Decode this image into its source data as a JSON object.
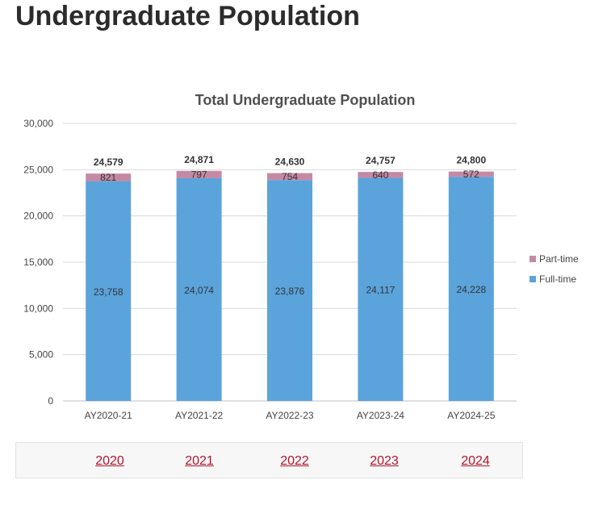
{
  "page": {
    "title": "Undergraduate Population"
  },
  "chart_data": {
    "type": "bar",
    "stacked": true,
    "title": "Total Undergraduate Population",
    "xlabel": "",
    "ylabel": "",
    "categories": [
      "AY2020-21",
      "AY2021-22",
      "AY2022-23",
      "AY2023-24",
      "AY2024-25"
    ],
    "series": [
      {
        "name": "Full-time",
        "values": [
          23758,
          24074,
          23876,
          24117,
          24228
        ],
        "color": "#5ba3db"
      },
      {
        "name": "Part-time",
        "values": [
          821,
          797,
          754,
          640,
          572
        ],
        "color": "#c48aa5"
      }
    ],
    "totals": [
      24579,
      24871,
      24630,
      24757,
      24800
    ],
    "value_labels": {
      "Full-time": [
        "23,758",
        "24,074",
        "23,876",
        "24,117",
        "24,228"
      ],
      "Part-time": [
        "821",
        "797",
        "754",
        "640",
        "572"
      ],
      "totals": [
        "24,579",
        "24,871",
        "24,630",
        "24,757",
        "24,800"
      ]
    },
    "ylim": [
      0,
      30000
    ],
    "yticks": [
      0,
      5000,
      10000,
      15000,
      20000,
      25000,
      30000
    ],
    "ytick_labels": [
      "0",
      "5,000",
      "10,000",
      "15,000",
      "20,000",
      "25,000",
      "30,000"
    ],
    "grid": true,
    "legend": {
      "position": "right",
      "entries": [
        "Part-time",
        "Full-time"
      ]
    }
  },
  "year_links": [
    "2020",
    "2021",
    "2022",
    "2023",
    "2024"
  ]
}
